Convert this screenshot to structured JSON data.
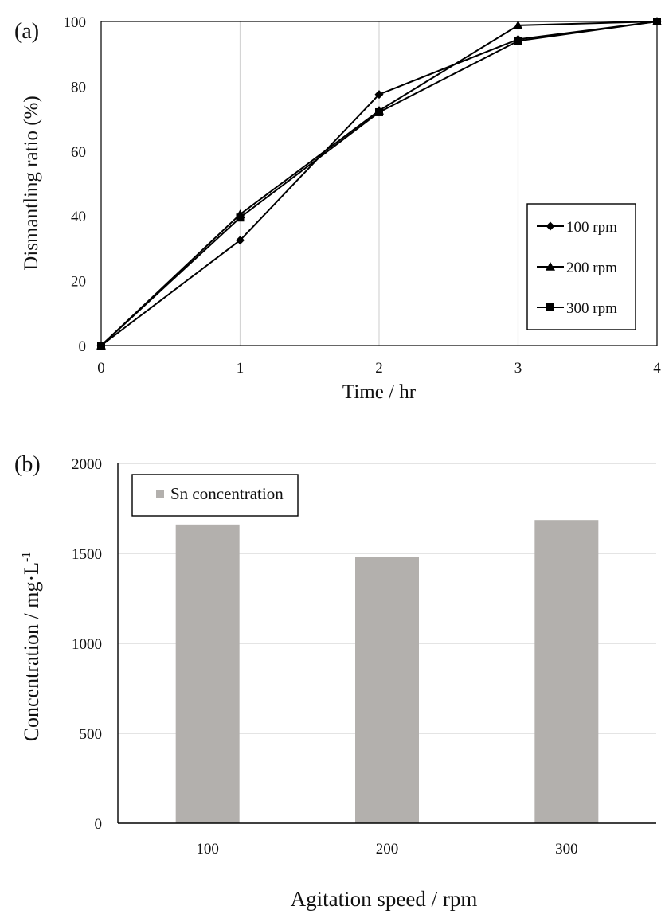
{
  "chart_data": [
    {
      "panel_label": "(a)",
      "type": "line",
      "xlabel": "Time / hr",
      "ylabel": "Dismantling ratio (%)",
      "xlim": [
        0,
        4
      ],
      "ylim": [
        0,
        100
      ],
      "xticks": [
        "0",
        "1",
        "2",
        "3",
        "4"
      ],
      "yticks": [
        "0",
        "20",
        "40",
        "60",
        "80",
        "100"
      ],
      "grid": "vertical",
      "legend_position": "right",
      "series": [
        {
          "name": "100 rpm",
          "marker": "diamond",
          "x": [
            0,
            1,
            2,
            3,
            4
          ],
          "y": [
            0,
            32.5,
            77.5,
            94.5,
            100
          ]
        },
        {
          "name": "200 rpm",
          "marker": "triangle",
          "x": [
            0,
            1,
            2,
            3,
            4
          ],
          "y": [
            0,
            40.5,
            72.5,
            98.8,
            100
          ]
        },
        {
          "name": "300 rpm",
          "marker": "square",
          "x": [
            0,
            1,
            2,
            3,
            4
          ],
          "y": [
            0,
            39.5,
            72.0,
            94.0,
            100
          ]
        }
      ]
    },
    {
      "panel_label": "(b)",
      "type": "bar",
      "xlabel": "Agitation speed / rpm",
      "ylabel_main": "Concentration / mg·L",
      "ylabel_sup": "-1",
      "ylim": [
        0,
        2000
      ],
      "yticks": [
        "0",
        "500",
        "1000",
        "1500",
        "2000"
      ],
      "grid": "horizontal",
      "legend_position": "top-left",
      "categories": [
        "100",
        "200",
        "300"
      ],
      "series": [
        {
          "name": "Sn concentration",
          "values": [
            1660,
            1480,
            1685
          ]
        }
      ],
      "bar_color": "#b3b0ad"
    }
  ]
}
